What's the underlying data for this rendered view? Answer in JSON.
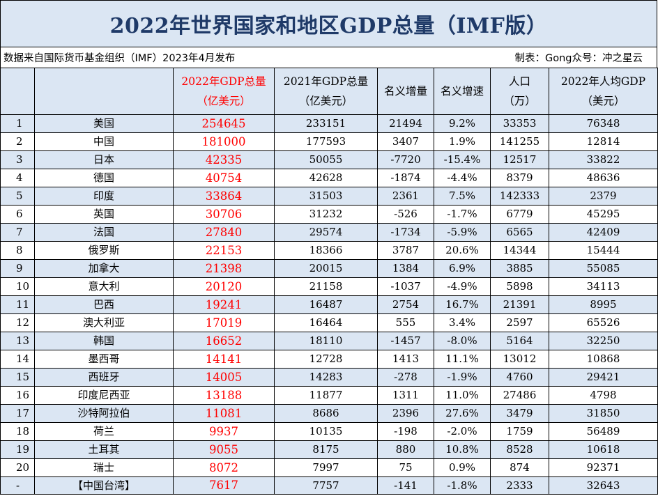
{
  "title": "2022年世界国家和地区GDP总量（IMF版）",
  "source_note": "数据来自国际货币基金组织（IMF）2023年4月发布",
  "maker_note": "制表：Gong众号：冲之星云",
  "headers": {
    "rank": "",
    "country": "",
    "gdp2022_line1": "2022年GDP总量",
    "gdp2022_line2": "（亿美元）",
    "gdp2021_line1": "2021年GDP总量",
    "gdp2021_line2": "（亿美元）",
    "nominal_increase": "名义增量",
    "nominal_growth": "名义增速",
    "population_line1": "人口",
    "population_line2": "（万）",
    "per_capita_line1": "2022年人均GDP",
    "per_capita_line2": "（美元）"
  },
  "colors": {
    "header_bg": "#dbe6f3",
    "title_text": "#1f3a68",
    "highlight_red": "#ff0000"
  },
  "rows": [
    {
      "rank": "1",
      "country": "美国",
      "gdp2022": "254645",
      "gdp2021": "233151",
      "increase": "21494",
      "growth": "9.2%",
      "population": "33353",
      "per_capita": "76348"
    },
    {
      "rank": "2",
      "country": "中国",
      "gdp2022": "181000",
      "gdp2021": "177593",
      "increase": "3407",
      "growth": "1.9%",
      "population": "141255",
      "per_capita": "12814"
    },
    {
      "rank": "3",
      "country": "日本",
      "gdp2022": "42335",
      "gdp2021": "50055",
      "increase": "-7720",
      "growth": "-15.4%",
      "population": "12517",
      "per_capita": "33822"
    },
    {
      "rank": "4",
      "country": "德国",
      "gdp2022": "40754",
      "gdp2021": "42628",
      "increase": "-1874",
      "growth": "-4.4%",
      "population": "8379",
      "per_capita": "48636"
    },
    {
      "rank": "5",
      "country": "印度",
      "gdp2022": "33864",
      "gdp2021": "31503",
      "increase": "2361",
      "growth": "7.5%",
      "population": "142333",
      "per_capita": "2379"
    },
    {
      "rank": "6",
      "country": "英国",
      "gdp2022": "30706",
      "gdp2021": "31232",
      "increase": "-526",
      "growth": "-1.7%",
      "population": "6779",
      "per_capita": "45295"
    },
    {
      "rank": "7",
      "country": "法国",
      "gdp2022": "27840",
      "gdp2021": "29574",
      "increase": "-1734",
      "growth": "-5.9%",
      "population": "6565",
      "per_capita": "42409"
    },
    {
      "rank": "8",
      "country": "俄罗斯",
      "gdp2022": "22153",
      "gdp2021": "18366",
      "increase": "3787",
      "growth": "20.6%",
      "population": "14344",
      "per_capita": "15444"
    },
    {
      "rank": "9",
      "country": "加拿大",
      "gdp2022": "21398",
      "gdp2021": "20015",
      "increase": "1384",
      "growth": "6.9%",
      "population": "3885",
      "per_capita": "55085"
    },
    {
      "rank": "10",
      "country": "意大利",
      "gdp2022": "20120",
      "gdp2021": "21158",
      "increase": "-1037",
      "growth": "-4.9%",
      "population": "5898",
      "per_capita": "34113"
    },
    {
      "rank": "11",
      "country": "巴西",
      "gdp2022": "19241",
      "gdp2021": "16487",
      "increase": "2754",
      "growth": "16.7%",
      "population": "21391",
      "per_capita": "8995"
    },
    {
      "rank": "12",
      "country": "澳大利亚",
      "gdp2022": "17019",
      "gdp2021": "16464",
      "increase": "555",
      "growth": "3.4%",
      "population": "2597",
      "per_capita": "65526"
    },
    {
      "rank": "13",
      "country": "韩国",
      "gdp2022": "16652",
      "gdp2021": "18110",
      "increase": "-1457",
      "growth": "-8.0%",
      "population": "5164",
      "per_capita": "32250"
    },
    {
      "rank": "14",
      "country": "墨西哥",
      "gdp2022": "14141",
      "gdp2021": "12728",
      "increase": "1413",
      "growth": "11.1%",
      "population": "13012",
      "per_capita": "10868"
    },
    {
      "rank": "15",
      "country": "西班牙",
      "gdp2022": "14005",
      "gdp2021": "14283",
      "increase": "-278",
      "growth": "-1.9%",
      "population": "4760",
      "per_capita": "29421"
    },
    {
      "rank": "16",
      "country": "印度尼西亚",
      "gdp2022": "13188",
      "gdp2021": "11877",
      "increase": "1311",
      "growth": "11.0%",
      "population": "27486",
      "per_capita": "4798"
    },
    {
      "rank": "17",
      "country": "沙特阿拉伯",
      "gdp2022": "11081",
      "gdp2021": "8686",
      "increase": "2396",
      "growth": "27.6%",
      "population": "3479",
      "per_capita": "31850"
    },
    {
      "rank": "18",
      "country": "荷兰",
      "gdp2022": "9937",
      "gdp2021": "10135",
      "increase": "-198",
      "growth": "-2.0%",
      "population": "1759",
      "per_capita": "56489"
    },
    {
      "rank": "19",
      "country": "土耳其",
      "gdp2022": "9055",
      "gdp2021": "8175",
      "increase": "880",
      "growth": "10.8%",
      "population": "8528",
      "per_capita": "10618"
    },
    {
      "rank": "20",
      "country": "瑞士",
      "gdp2022": "8072",
      "gdp2021": "7997",
      "increase": "75",
      "growth": "0.9%",
      "population": "874",
      "per_capita": "92371"
    },
    {
      "rank": "-",
      "country": "【中国台湾】",
      "gdp2022": "7617",
      "gdp2021": "7757",
      "increase": "-141",
      "growth": "-1.8%",
      "population": "2333",
      "per_capita": "32643"
    }
  ]
}
